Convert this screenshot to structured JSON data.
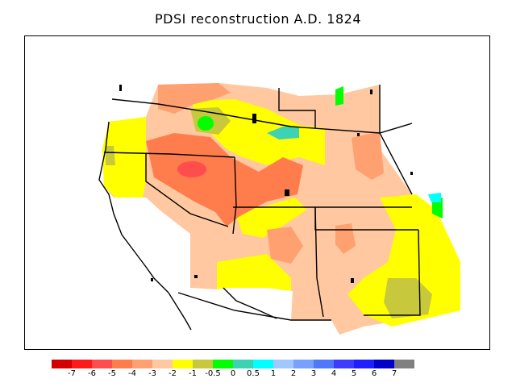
{
  "title": "PDSI reconstruction A.D. 1824",
  "legend": {
    "colors": [
      "#d40000",
      "#ff1a1a",
      "#ff4d4d",
      "#ff7d4d",
      "#ffa070",
      "#ffc8a0",
      "#ffff00",
      "#c8c83c",
      "#00ff00",
      "#3cd2b4",
      "#00ffff",
      "#a0c8ff",
      "#78a0ff",
      "#5078ff",
      "#3c3cff",
      "#1e1eff",
      "#0000c8",
      "#808080"
    ],
    "labels": [
      "-7",
      "-6",
      "-5",
      "-4",
      "-3",
      "-2",
      "-1",
      "-0.5",
      "0",
      "0.5",
      "1",
      "2",
      "3",
      "4",
      "5",
      "6",
      "7"
    ]
  },
  "map": {
    "region": "Western United States",
    "predominant_value_range": "-3 to -2",
    "features": [
      {
        "name": "drought-core-nevada-utah",
        "level": "-5"
      },
      {
        "name": "moist-spot-idaho",
        "level": "0"
      },
      {
        "name": "moist-spot-northern-colorado",
        "level": "0"
      },
      {
        "name": "moist-edge-wyoming-montana",
        "level": "0.5"
      }
    ]
  }
}
